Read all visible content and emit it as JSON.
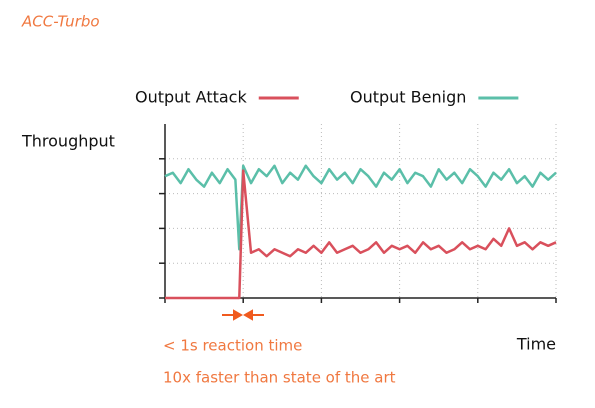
{
  "chart_data": {
    "type": "line",
    "title": "ACC-Turbo",
    "y_label": "Throughput",
    "x_label": "Time",
    "annotations": [
      "< 1s reaction time",
      "10x faster than state of the art"
    ],
    "legend": "top",
    "grid": true,
    "xlim": [
      0,
      5
    ],
    "xticks": [
      0,
      1,
      2,
      3,
      4,
      5
    ],
    "ylim": [
      0,
      5
    ],
    "yticks": [
      0,
      1,
      2,
      3,
      4
    ],
    "x": [
      0,
      0.1,
      0.2,
      0.3,
      0.4,
      0.5,
      0.6,
      0.7,
      0.8,
      0.9,
      0.95,
      1.0,
      1.1,
      1.2,
      1.3,
      1.4,
      1.5,
      1.6,
      1.7,
      1.8,
      1.9,
      2.0,
      2.1,
      2.2,
      2.3,
      2.4,
      2.5,
      2.6,
      2.7,
      2.8,
      2.9,
      3.0,
      3.1,
      3.2,
      3.3,
      3.4,
      3.5,
      3.6,
      3.7,
      3.8,
      3.9,
      4.0,
      4.1,
      4.2,
      4.3,
      4.4,
      4.5,
      4.6,
      4.7,
      4.8,
      4.9,
      5.0
    ],
    "series": [
      {
        "name": "Output Attack",
        "color": "#d9505c",
        "values": [
          0,
          0,
          0,
          0,
          0,
          0,
          0,
          0,
          0,
          0,
          0,
          3.66,
          1.3,
          1.4,
          1.2,
          1.4,
          1.3,
          1.2,
          1.4,
          1.3,
          1.5,
          1.3,
          1.6,
          1.3,
          1.4,
          1.5,
          1.3,
          1.4,
          1.6,
          1.3,
          1.5,
          1.4,
          1.5,
          1.3,
          1.6,
          1.4,
          1.5,
          1.3,
          1.4,
          1.6,
          1.4,
          1.5,
          1.4,
          1.7,
          1.5,
          2.0,
          1.5,
          1.6,
          1.4,
          1.6,
          1.5,
          1.6
        ]
      },
      {
        "name": "Output Benign",
        "color": "#5bbfa9",
        "values": [
          3.5,
          3.6,
          3.3,
          3.7,
          3.4,
          3.2,
          3.6,
          3.3,
          3.7,
          3.4,
          1.4,
          3.8,
          3.3,
          3.7,
          3.5,
          3.8,
          3.3,
          3.6,
          3.4,
          3.8,
          3.5,
          3.3,
          3.7,
          3.4,
          3.6,
          3.3,
          3.7,
          3.5,
          3.2,
          3.6,
          3.4,
          3.7,
          3.3,
          3.6,
          3.5,
          3.2,
          3.7,
          3.4,
          3.6,
          3.3,
          3.7,
          3.5,
          3.2,
          3.6,
          3.4,
          3.7,
          3.3,
          3.5,
          3.2,
          3.6,
          3.4,
          3.6
        ]
      }
    ]
  }
}
